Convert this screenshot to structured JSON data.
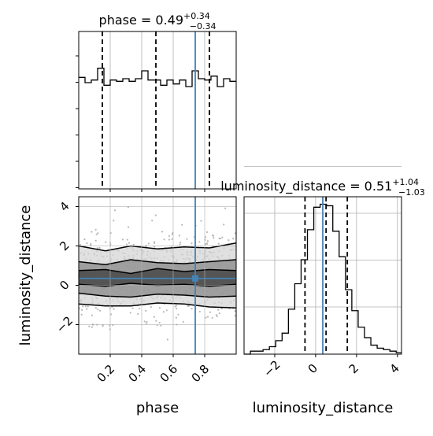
{
  "chart_data": [
    {
      "type": "histogram",
      "panel": "phase-marginal",
      "title": {
        "base": "phase = 0.49",
        "sup": "+0.34",
        "sub": "−0.34"
      },
      "xlim": [
        0.0,
        1.0
      ],
      "bin_edges": [
        0.0,
        0.04,
        0.08,
        0.12,
        0.16,
        0.2,
        0.24,
        0.28,
        0.32,
        0.36,
        0.4,
        0.44,
        0.48,
        0.52,
        0.56,
        0.6,
        0.64,
        0.68,
        0.72,
        0.76,
        0.8,
        0.84,
        0.88,
        0.92,
        0.96,
        1.0
      ],
      "counts": [
        0.85,
        0.81,
        0.83,
        0.92,
        0.79,
        0.83,
        0.82,
        0.84,
        0.82,
        0.84,
        0.9,
        0.83,
        0.83,
        0.79,
        0.83,
        0.8,
        0.83,
        0.78,
        0.9,
        0.84,
        0.83,
        0.86,
        0.78,
        0.84,
        0.82
      ],
      "ylim": [
        0,
        1.2
      ],
      "quantile_lines": [
        0.15,
        0.49,
        0.83
      ],
      "truth_line": 0.74,
      "grid": true
    },
    {
      "type": "histogram",
      "panel": "luminosity-distance-marginal",
      "title": {
        "base": "luminosity_distance = 0.51",
        "sup": "+1.04",
        "sub": "−1.03"
      },
      "xlim": [
        -3.5,
        4.2
      ],
      "xticks": [
        -2,
        0,
        2,
        4
      ],
      "xtick_labels": [
        "−2",
        "0",
        "2",
        "4"
      ],
      "xlabel": "luminosity_distance",
      "bin_edges": [
        -3.5,
        -3.19,
        -2.88,
        -2.57,
        -2.26,
        -1.95,
        -1.64,
        -1.33,
        -1.02,
        -0.71,
        -0.4,
        -0.09,
        0.22,
        0.53,
        0.84,
        1.15,
        1.46,
        1.77,
        2.08,
        2.39,
        2.7,
        3.01,
        3.32,
        3.63,
        3.94,
        4.2
      ],
      "counts": [
        0,
        2,
        2,
        3,
        5,
        9,
        14,
        30,
        47,
        63,
        83,
        98,
        100,
        99,
        82,
        65,
        43,
        29,
        18,
        11,
        6,
        4,
        3,
        2,
        1
      ],
      "ylim": [
        0,
        105
      ],
      "quantile_lines": [
        -0.52,
        0.51,
        1.55
      ],
      "truth_line": 0.35,
      "grid": true
    },
    {
      "type": "scatter-density",
      "panel": "phase-vs-luminosity-distance",
      "xlabel": "phase",
      "ylabel": "luminosity_distance",
      "xlim": [
        0.0,
        1.0
      ],
      "ylim": [
        -3.5,
        4.5
      ],
      "xticks": [
        0.2,
        0.4,
        0.6,
        0.8
      ],
      "xtick_labels": [
        "0.2",
        "0.4",
        "0.6",
        "0.8"
      ],
      "yticks": [
        -2,
        0,
        2,
        4
      ],
      "ytick_labels": [
        "−2",
        "0",
        "2",
        "4"
      ],
      "contour_levels_y": {
        "outer": [
          [
            -0.95,
            2.0
          ],
          [
            -1.05,
            1.75
          ],
          [
            -1.05,
            2.0
          ],
          [
            -0.9,
            1.85
          ],
          [
            -0.95,
            1.95
          ],
          [
            -1.1,
            1.9
          ],
          [
            -1.15,
            2.15
          ]
        ],
        "middle": [
          [
            -0.4,
            1.2
          ],
          [
            -0.55,
            1.05
          ],
          [
            -0.6,
            1.3
          ],
          [
            -0.45,
            1.15
          ],
          [
            -0.5,
            1.1
          ],
          [
            -0.6,
            1.2
          ],
          [
            -0.55,
            1.3
          ]
        ],
        "inner": [
          [
            0.05,
            0.75
          ],
          [
            -0.05,
            0.8
          ],
          [
            0.1,
            0.6
          ],
          [
            0.0,
            0.85
          ],
          [
            0.05,
            0.7
          ],
          [
            -0.05,
            0.8
          ],
          [
            0.05,
            0.75
          ]
        ]
      },
      "contour_x": [
        0.0,
        0.17,
        0.33,
        0.5,
        0.67,
        0.83,
        1.0
      ],
      "truth": {
        "x": 0.74,
        "y": 0.35
      },
      "grid": true
    }
  ],
  "colors": {
    "truth": "#4682b4",
    "lines": "#000000",
    "grid": "#b0b0b0"
  }
}
